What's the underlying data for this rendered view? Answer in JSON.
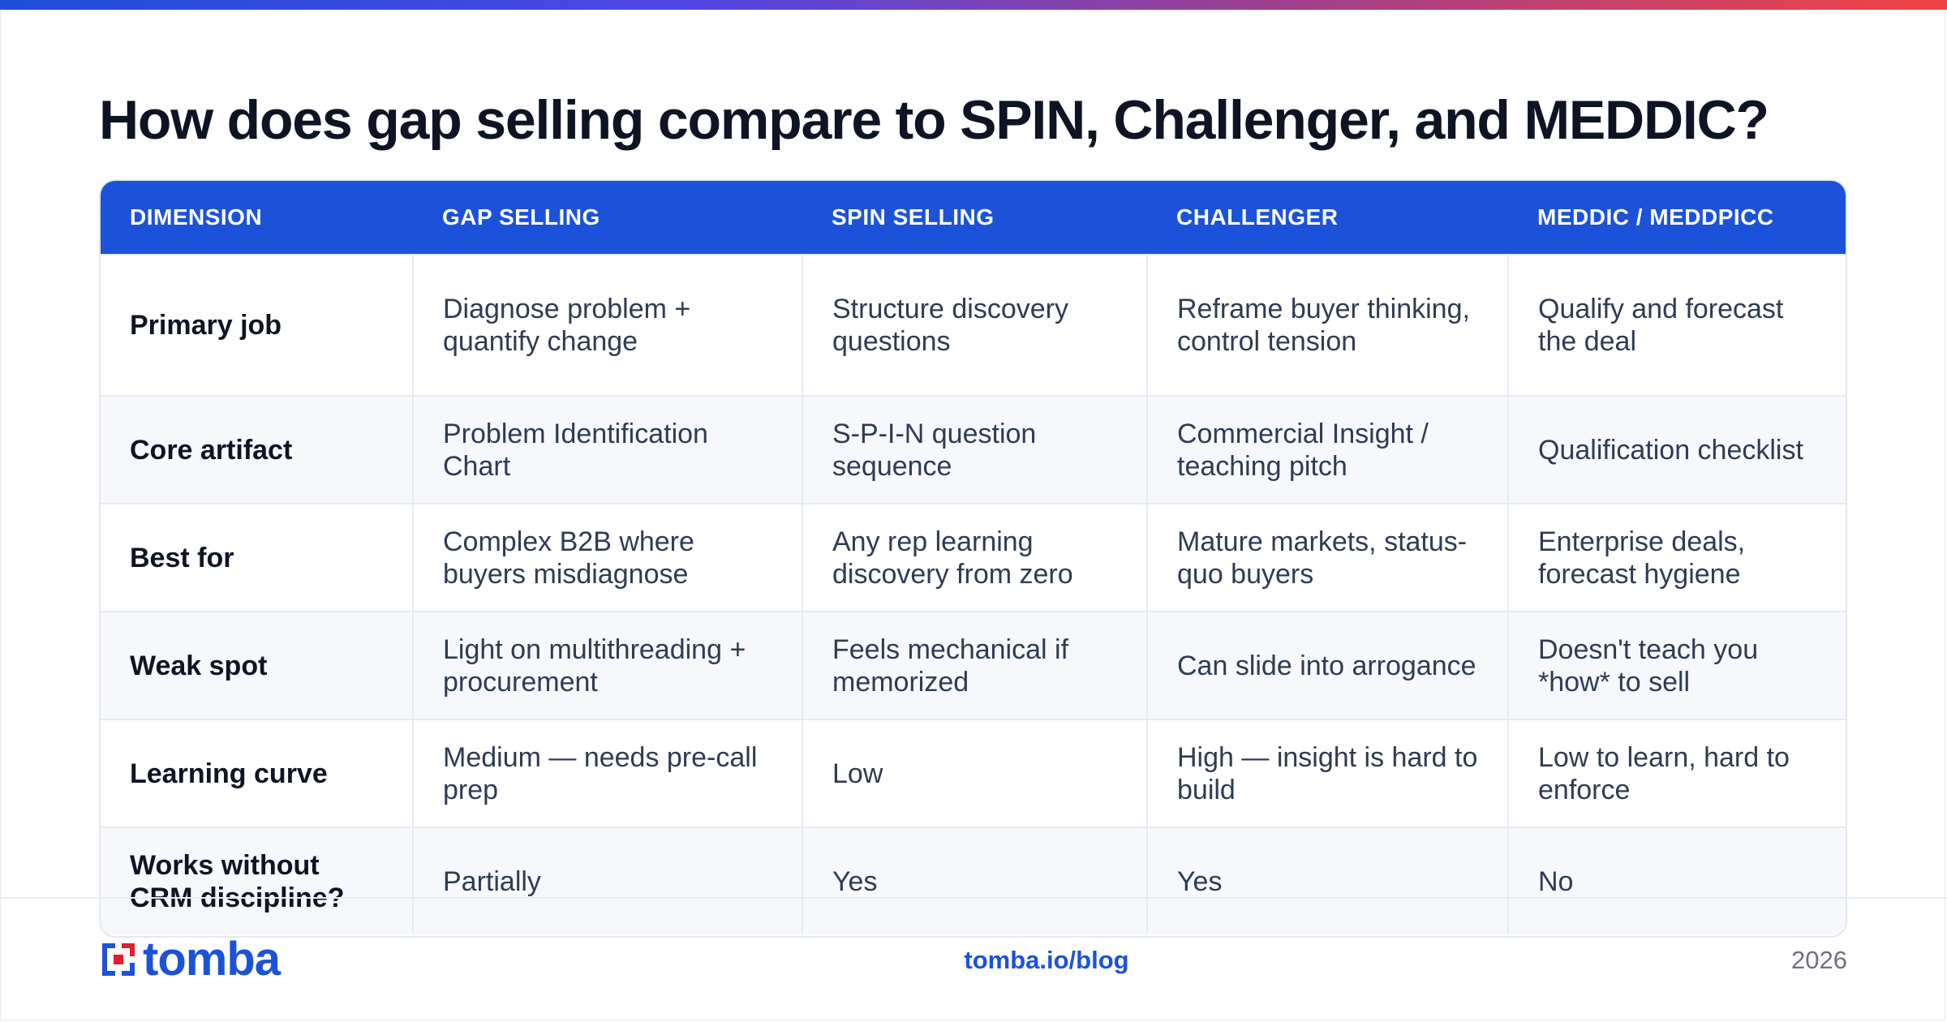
{
  "title": "How does gap selling compare to SPIN, Challenger, and MEDDIC?",
  "table": {
    "headers": [
      "DIMENSION",
      "GAP SELLING",
      "SPIN SELLING",
      "CHALLENGER",
      "MEDDIC / MEDDPICC"
    ],
    "rows": [
      [
        "Primary job",
        "Diagnose problem + quantify change",
        "Structure discovery questions",
        "Reframe buyer thinking, control tension",
        "Qualify and forecast the deal"
      ],
      [
        "Core artifact",
        "Problem Identification Chart",
        "S-P-I-N question sequence",
        "Commercial Insight / teaching pitch",
        "Qualification checklist"
      ],
      [
        "Best for",
        "Complex B2B where buyers misdiagnose",
        "Any rep learning discovery from zero",
        "Mature markets, status-quo buyers",
        "Enterprise deals, forecast hygiene"
      ],
      [
        "Weak spot",
        "Light on multithreading + procurement",
        "Feels mechanical if memorized",
        "Can slide into arrogance",
        "Doesn't teach you *how* to sell"
      ],
      [
        "Learning curve",
        "Medium — needs pre-call prep",
        "Low",
        "High — insight is hard to build",
        "Low to learn, hard to enforce"
      ],
      [
        "Works without CRM discipline?",
        "Partially",
        "Yes",
        "Yes",
        "No"
      ]
    ]
  },
  "footer": {
    "logo_text": "tomba",
    "link": "tomba.io/blog",
    "year": "2026"
  },
  "colors": {
    "accent": "#1c52d9",
    "logo_red": "#e11d2e"
  }
}
